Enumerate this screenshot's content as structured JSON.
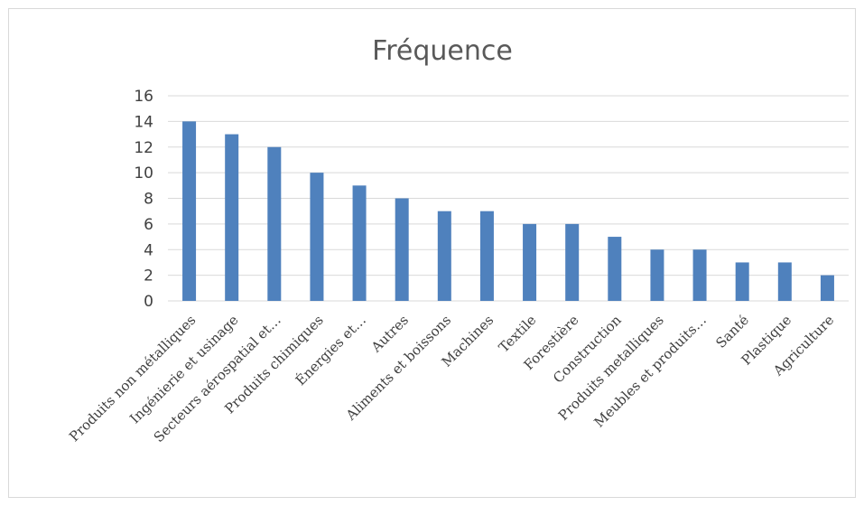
{
  "chart_data": {
    "type": "bar",
    "title": "Fréquence",
    "xlabel": "",
    "ylabel": "",
    "ylim": [
      0,
      16
    ],
    "yticks": [
      0,
      2,
      4,
      6,
      8,
      10,
      12,
      14,
      16
    ],
    "grid": true,
    "legend": "none",
    "bar_color": "#4f81bd",
    "categories": [
      "Produits non métalliques",
      "Ingénierie et usinage",
      "Secteurs aérospatial et…",
      "Produits chimiques",
      "Énergies et…",
      "Autres",
      "Aliments et boissons",
      "Machines",
      "Textile",
      "Forestière",
      "Construction",
      "Produits metalliques",
      "Meubles et produits…",
      "Santé",
      "Plastique",
      "Agriculture"
    ],
    "values": [
      14,
      13,
      12,
      10,
      9,
      8,
      7,
      7,
      6,
      6,
      5,
      4,
      4,
      3,
      3,
      2
    ]
  }
}
